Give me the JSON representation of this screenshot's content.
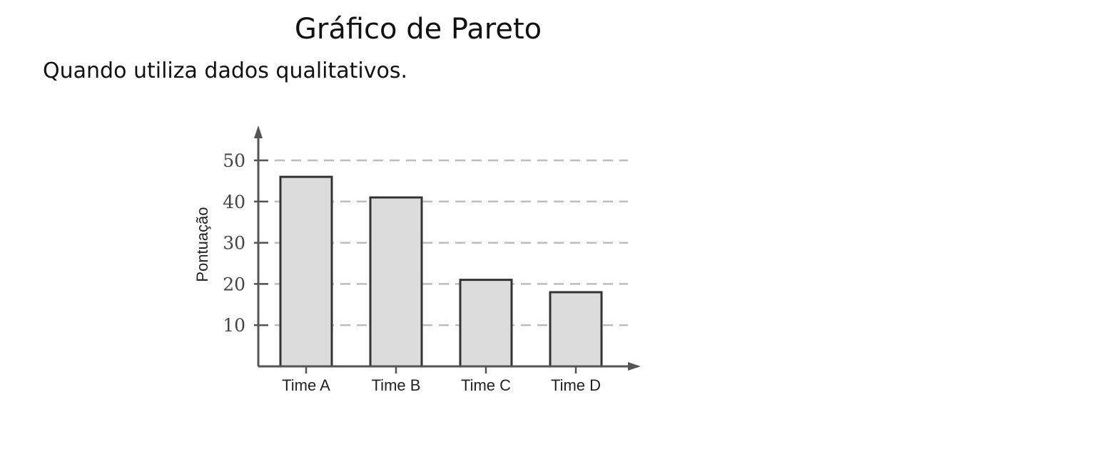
{
  "slide": {
    "title": "Gráfico de Pareto",
    "subtitle": "Quando utiliza dados qualitativos."
  },
  "chart_data": {
    "type": "bar",
    "categories": [
      "Time A",
      "Time B",
      "Time C",
      "Time D"
    ],
    "values": [
      46,
      41,
      21,
      18
    ],
    "ylabel": "Pontuação",
    "xlabel": "",
    "ylim": [
      0,
      55
    ],
    "yticks": [
      10,
      20,
      30,
      40,
      50
    ],
    "grid": true,
    "grid_style": "dashed",
    "colors": {
      "bar_fill": "#dcdcdc",
      "bar_stroke": "#333333",
      "axis": "#555555",
      "grid": "#bdbdbd"
    }
  }
}
